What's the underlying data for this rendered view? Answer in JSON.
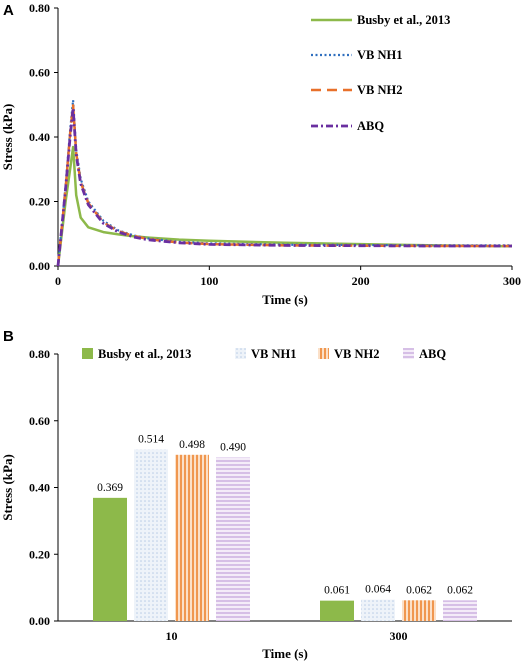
{
  "chart_data": [
    {
      "panel": "A",
      "type": "line",
      "xlabel": "Time (s)",
      "ylabel": "Stress (kPa)",
      "xlim": [
        0,
        300
      ],
      "ylim": [
        0,
        0.8
      ],
      "xticks": [
        "0",
        "100",
        "200",
        "300"
      ],
      "yticks": [
        "0.00",
        "0.20",
        "0.40",
        "0.60",
        "0.80"
      ],
      "legend_position": "top-right",
      "series": [
        {
          "name": "Busby et al., 2013",
          "color": "#8db94a",
          "dash": "solid",
          "x": [
            0,
            5,
            8,
            10,
            12,
            15,
            20,
            30,
            40,
            50,
            60,
            80,
            100,
            150,
            200,
            250,
            300
          ],
          "y": [
            0.0,
            0.2,
            0.3,
            0.369,
            0.22,
            0.15,
            0.12,
            0.105,
            0.098,
            0.092,
            0.088,
            0.082,
            0.078,
            0.072,
            0.068,
            0.064,
            0.061
          ]
        },
        {
          "name": "VB NH1",
          "color": "#2f6fbf",
          "dash": "dot",
          "x": [
            0,
            5,
            8,
            10,
            12,
            15,
            20,
            30,
            40,
            50,
            60,
            80,
            100,
            150,
            200,
            250,
            300
          ],
          "y": [
            0.0,
            0.25,
            0.42,
            0.514,
            0.36,
            0.27,
            0.2,
            0.14,
            0.11,
            0.095,
            0.085,
            0.075,
            0.07,
            0.066,
            0.065,
            0.064,
            0.064
          ]
        },
        {
          "name": "VB NH2",
          "color": "#e8702a",
          "dash": "dash",
          "x": [
            0,
            5,
            8,
            10,
            12,
            15,
            20,
            30,
            40,
            50,
            60,
            80,
            100,
            150,
            200,
            250,
            300
          ],
          "y": [
            0.0,
            0.24,
            0.41,
            0.498,
            0.35,
            0.26,
            0.195,
            0.135,
            0.108,
            0.093,
            0.083,
            0.073,
            0.068,
            0.064,
            0.063,
            0.062,
            0.062
          ]
        },
        {
          "name": "ABQ",
          "color": "#6a2fa0",
          "dash": "dashdot",
          "x": [
            0,
            5,
            8,
            10,
            12,
            15,
            20,
            30,
            40,
            50,
            60,
            80,
            100,
            150,
            200,
            250,
            300
          ],
          "y": [
            0.0,
            0.24,
            0.4,
            0.49,
            0.345,
            0.255,
            0.19,
            0.132,
            0.105,
            0.09,
            0.081,
            0.072,
            0.067,
            0.064,
            0.063,
            0.062,
            0.062
          ]
        }
      ]
    },
    {
      "panel": "B",
      "type": "bar",
      "xlabel": "Time (s)",
      "ylabel": "Stress (kPa)",
      "ylim": [
        0,
        0.8
      ],
      "yticks": [
        "0.00",
        "0.20",
        "0.40",
        "0.60",
        "0.80"
      ],
      "categories": [
        "10",
        "300"
      ],
      "legend_position": "top",
      "series": [
        {
          "name": "Busby et al., 2013",
          "color": "#8db94a",
          "pattern": "solid",
          "values": [
            0.369,
            0.061
          ],
          "labels": [
            "0.369",
            "0.061"
          ]
        },
        {
          "name": "VB NH1",
          "color": "#dce8f4",
          "pattern": "dots",
          "values": [
            0.514,
            0.064
          ],
          "labels": [
            "0.514",
            "0.064"
          ]
        },
        {
          "name": "VB NH2",
          "color": "#f3a668",
          "pattern": "vertical-stripes",
          "values": [
            0.498,
            0.062
          ],
          "labels": [
            "0.498",
            "0.062"
          ]
        },
        {
          "name": "ABQ",
          "color": "#d9c4e6",
          "pattern": "horizontal-stripes",
          "values": [
            0.49,
            0.062
          ],
          "labels": [
            "0.490",
            "0.062"
          ]
        }
      ]
    }
  ]
}
